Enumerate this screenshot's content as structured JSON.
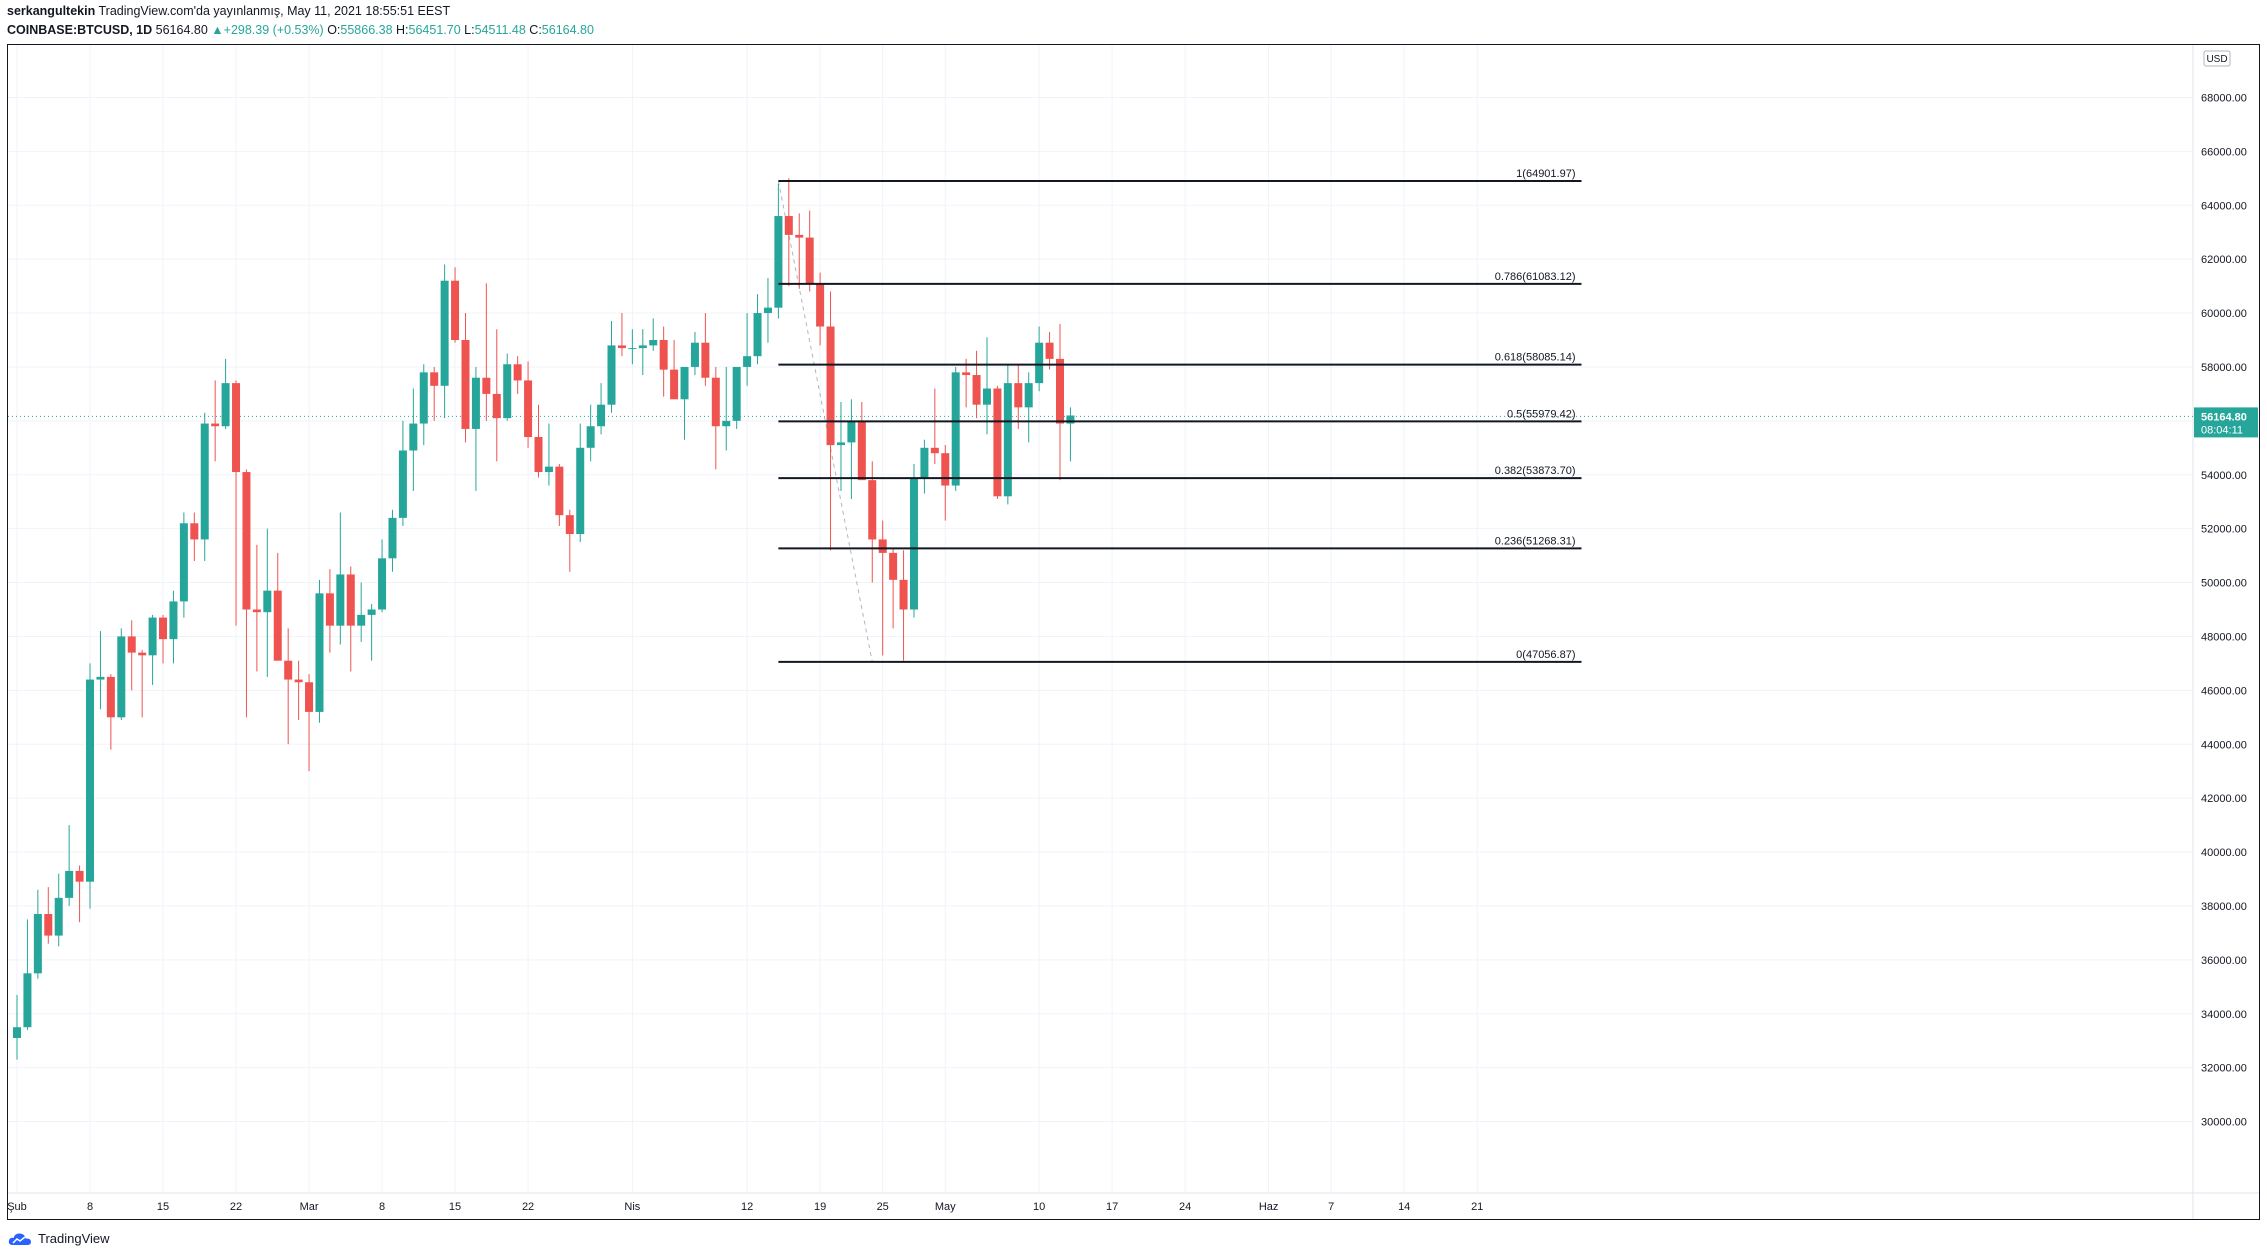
{
  "header": {
    "publisher": "serkangultekin",
    "published_text": "TradingView.com'da yayınlanmış, May 11, 2021 18:55:51 EEST",
    "symbol": "COINBASE:BTCUSD, 1D",
    "last": "56164.80",
    "change_arrow": "▲",
    "change": "+298.39 (+0.53%)",
    "o_label": "O:",
    "o_value": "55866.38",
    "h_label": "H:",
    "h_value": "56451.70",
    "l_label": "L:",
    "l_value": "54511.48",
    "c_label": "C:",
    "c_value": "56164.80"
  },
  "footer": {
    "brand": "TradingView",
    "logo_icon": "tradingview-cloud-icon"
  },
  "colors": {
    "up": "#26a69a",
    "down": "#ef5350",
    "grid": "#f0f3fa",
    "fib_line": "#131722",
    "axis_text": "#131722",
    "price_tag": "#26a69a"
  },
  "chart_data": {
    "type": "candlestick",
    "currency_label": "USD",
    "ylim": [
      29000,
      69000
    ],
    "y_ticks": [
      30000,
      32000,
      34000,
      36000,
      38000,
      40000,
      42000,
      44000,
      46000,
      48000,
      50000,
      52000,
      54000,
      56000,
      58000,
      60000,
      62000,
      64000,
      66000,
      68000
    ],
    "y_tick_labels": [
      "30000.00",
      "32000.00",
      "34000.00",
      "36000.00",
      "38000.00",
      "40000.00",
      "42000.00",
      "44000.00",
      "46000.00",
      "48000.00",
      "50000.00",
      "52000.00",
      "54000.00",
      "56000.00",
      "58000.00",
      "60000.00",
      "62000.00",
      "64000.00",
      "66000.00",
      "68000.00"
    ],
    "x_ticks": [
      {
        "day": 0,
        "label": "Şub"
      },
      {
        "day": 7,
        "label": "8"
      },
      {
        "day": 14,
        "label": "15"
      },
      {
        "day": 21,
        "label": "22"
      },
      {
        "day": 28,
        "label": "Mar"
      },
      {
        "day": 35,
        "label": "8"
      },
      {
        "day": 42,
        "label": "15"
      },
      {
        "day": 49,
        "label": "22"
      },
      {
        "day": 59,
        "label": "Nis"
      },
      {
        "day": 70,
        "label": "12"
      },
      {
        "day": 77,
        "label": "19"
      },
      {
        "day": 83,
        "label": "25"
      },
      {
        "day": 89,
        "label": "May"
      },
      {
        "day": 98,
        "label": "10"
      },
      {
        "day": 105,
        "label": "17"
      },
      {
        "day": 112,
        "label": "24"
      },
      {
        "day": 120,
        "label": "Haz"
      },
      {
        "day": 126,
        "label": "7"
      },
      {
        "day": 133,
        "label": "14"
      },
      {
        "day": 140,
        "label": "21"
      }
    ],
    "first_day": "2021-02-01",
    "candles": [
      [
        33100,
        34700,
        32300,
        33500
      ],
      [
        33500,
        37500,
        33400,
        35500
      ],
      [
        35500,
        38600,
        35300,
        37700
      ],
      [
        37700,
        38700,
        36600,
        36900
      ],
      [
        36900,
        39200,
        36500,
        38300
      ],
      [
        38300,
        41000,
        38000,
        39300
      ],
      [
        39300,
        39500,
        37400,
        38900
      ],
      [
        38900,
        47000,
        37900,
        46400
      ],
      [
        46400,
        48200,
        45300,
        46500
      ],
      [
        46500,
        46600,
        43800,
        45000
      ],
      [
        45000,
        48300,
        44900,
        48000
      ],
      [
        48000,
        48600,
        46000,
        47400
      ],
      [
        47400,
        47500,
        45000,
        47300
      ],
      [
        47300,
        48800,
        46200,
        48700
      ],
      [
        48700,
        48800,
        47000,
        47900
      ],
      [
        47900,
        49700,
        47000,
        49300
      ],
      [
        49300,
        52600,
        48700,
        52200
      ],
      [
        52200,
        52600,
        50800,
        51600
      ],
      [
        51600,
        56300,
        50800,
        55900
      ],
      [
        55900,
        57500,
        54500,
        55800
      ],
      [
        55800,
        58300,
        55700,
        57400
      ],
      [
        57400,
        57500,
        48400,
        54100
      ],
      [
        54100,
        54200,
        45000,
        49000
      ],
      [
        49000,
        51400,
        46700,
        48900
      ],
      [
        48900,
        52000,
        46500,
        49700
      ],
      [
        49700,
        51100,
        47300,
        47100
      ],
      [
        47100,
        48300,
        44000,
        46400
      ],
      [
        46400,
        47100,
        44900,
        46300
      ],
      [
        46300,
        46600,
        43000,
        45200
      ],
      [
        45200,
        50100,
        44800,
        49600
      ],
      [
        49600,
        50500,
        47400,
        48400
      ],
      [
        48400,
        52600,
        47700,
        50300
      ],
      [
        50300,
        50600,
        46700,
        48400
      ],
      [
        48400,
        50000,
        47800,
        48800
      ],
      [
        48800,
        49200,
        47100,
        49000
      ],
      [
        49000,
        51600,
        48900,
        50900
      ],
      [
        50900,
        52700,
        50400,
        52400
      ],
      [
        52400,
        56000,
        52100,
        54900
      ],
      [
        54900,
        57200,
        53400,
        55900
      ],
      [
        55900,
        58100,
        55100,
        57800
      ],
      [
        57800,
        58000,
        56000,
        57300
      ],
      [
        57300,
        61800,
        56100,
        61200
      ],
      [
        61200,
        61700,
        58900,
        59000
      ],
      [
        59000,
        60000,
        55200,
        55700
      ],
      [
        55700,
        58000,
        53400,
        57600
      ],
      [
        57600,
        61100,
        56000,
        57000
      ],
      [
        57000,
        59400,
        54500,
        56100
      ],
      [
        56100,
        58500,
        56000,
        58100
      ],
      [
        58100,
        58400,
        57000,
        57500
      ],
      [
        57500,
        58200,
        55000,
        55400
      ],
      [
        55400,
        56600,
        53900,
        54100
      ],
      [
        54100,
        55900,
        53600,
        54300
      ],
      [
        54300,
        54400,
        52100,
        52500
      ],
      [
        52500,
        52700,
        50400,
        51800
      ],
      [
        51800,
        55900,
        51500,
        55000
      ],
      [
        55000,
        56600,
        54500,
        55800
      ],
      [
        55800,
        57400,
        55500,
        56600
      ],
      [
        56600,
        59700,
        56300,
        58800
      ],
      [
        58800,
        60000,
        58400,
        58700
      ],
      [
        58700,
        59400,
        58100,
        58700
      ],
      [
        58700,
        59400,
        57700,
        58800
      ],
      [
        58800,
        59800,
        58600,
        59000
      ],
      [
        59000,
        59500,
        56900,
        57900
      ],
      [
        57900,
        59000,
        57000,
        56800
      ],
      [
        56800,
        58000,
        55300,
        58000
      ],
      [
        58000,
        59300,
        57700,
        58900
      ],
      [
        58900,
        60000,
        57300,
        57600
      ],
      [
        57600,
        58000,
        54200,
        55800
      ],
      [
        55800,
        58000,
        54900,
        56000
      ],
      [
        56000,
        57800,
        55700,
        58000
      ],
      [
        58000,
        60000,
        57300,
        58400
      ],
      [
        58400,
        60700,
        58100,
        60000
      ],
      [
        60000,
        61300,
        58900,
        60200
      ],
      [
        60200,
        64800,
        59800,
        63600
      ],
      [
        63600,
        65000,
        61000,
        62900
      ],
      [
        62900,
        63700,
        60900,
        62800
      ],
      [
        62800,
        63800,
        60800,
        61100
      ],
      [
        61100,
        61500,
        58800,
        59500
      ],
      [
        59500,
        60800,
        51200,
        55100
      ],
      [
        55100,
        56700,
        53400,
        55200
      ],
      [
        55200,
        56800,
        53100,
        56000
      ],
      [
        56000,
        56700,
        53900,
        53800
      ],
      [
        53800,
        54500,
        50000,
        51600
      ],
      [
        51600,
        52300,
        47300,
        51100
      ],
      [
        51100,
        51300,
        48300,
        50100
      ],
      [
        50100,
        51200,
        47100,
        49000
      ],
      [
        49000,
        54400,
        48700,
        53900
      ],
      [
        53900,
        55300,
        53300,
        55000
      ],
      [
        55000,
        57200,
        54400,
        54800
      ],
      [
        54800,
        55100,
        52300,
        53600
      ],
      [
        53600,
        58000,
        53400,
        57800
      ],
      [
        57800,
        58300,
        56500,
        57700
      ],
      [
        57700,
        58600,
        56100,
        56600
      ],
      [
        56600,
        59100,
        55500,
        57200
      ],
      [
        57200,
        57300,
        53100,
        53200
      ],
      [
        53200,
        58100,
        52900,
        57400
      ],
      [
        57400,
        58100,
        55700,
        56500
      ],
      [
        56500,
        57800,
        55200,
        57400
      ],
      [
        57400,
        59500,
        57100,
        58900
      ],
      [
        58900,
        59300,
        57900,
        58300
      ],
      [
        58300,
        59600,
        53800,
        55900
      ],
      [
        55900,
        56500,
        54500,
        56200
      ]
    ],
    "fibonacci": {
      "start_day": 73,
      "end_day": 150,
      "levels": [
        {
          "ratio": "1",
          "price": 64901.97,
          "label": "1(64901.97)"
        },
        {
          "ratio": "0.786",
          "price": 61083.12,
          "label": "0.786(61083.12)"
        },
        {
          "ratio": "0.618",
          "price": 58085.14,
          "label": "0.618(58085.14)"
        },
        {
          "ratio": "0.5",
          "price": 55979.42,
          "label": "0.5(55979.42)"
        },
        {
          "ratio": "0.382",
          "price": 53873.7,
          "label": "0.382(53873.70)"
        },
        {
          "ratio": "0.236",
          "price": 51268.31,
          "label": "0.236(51268.31)"
        },
        {
          "ratio": "0",
          "price": 47056.87,
          "label": "0(47056.87)"
        }
      ],
      "trend_line": {
        "from_day": 73,
        "from_price": 64901.97,
        "to_day": 82,
        "to_price": 47056.87
      }
    },
    "last_price_label": "56164.80",
    "countdown_label": "08:04:11",
    "last_price": 56164.8
  }
}
